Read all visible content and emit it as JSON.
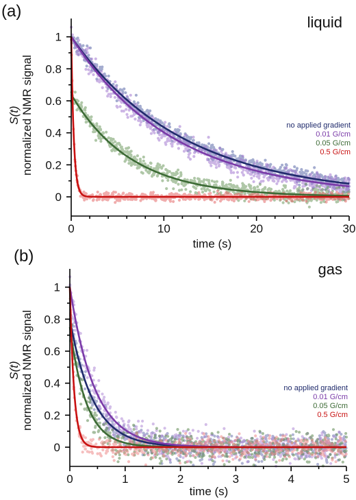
{
  "chart_data": [
    {
      "panel_label": "(a)",
      "title": "liquid",
      "type": "scatter",
      "xlabel": "time (s)",
      "ylabel_top": "S(t)",
      "ylabel": "normalized NMR signal",
      "xlim": [
        0,
        30
      ],
      "ylim": [
        -0.12,
        1.08
      ],
      "xticks": [
        0,
        10,
        20,
        30
      ],
      "yticks": [
        0,
        0.2,
        0.4,
        0.6,
        0.8,
        1
      ],
      "legend_placement": "right",
      "grid": false,
      "series": [
        {
          "name": "no applied gradient",
          "color": "#1f2a6b",
          "dot_color": "#5a6aa8",
          "amplitude": 1.0,
          "tau": 12.0,
          "points": 700,
          "noise": 0.025
        },
        {
          "name": "0.01 G/cm",
          "color": "#7a3aa8",
          "dot_color": "#a47ad0",
          "amplitude": 1.0,
          "tau": 11.0,
          "points": 700,
          "noise": 0.03
        },
        {
          "name": "0.05 G/cm",
          "color": "#3c6a35",
          "dot_color": "#6e9a60",
          "amplitude": 0.64,
          "tau": 6.5,
          "points": 700,
          "noise": 0.025
        },
        {
          "name": "0.5 G/cm",
          "color": "#c81010",
          "dot_color": "#e56a6a",
          "amplitude": 1.0,
          "tau": 0.28,
          "points": 700,
          "noise": 0.012
        }
      ]
    },
    {
      "panel_label": "(b)",
      "title": "gas",
      "type": "scatter",
      "xlabel": "time (s)",
      "ylabel_top": "S(t)",
      "ylabel": "normalized NMR signal",
      "xlim": [
        0,
        5
      ],
      "ylim": [
        -0.12,
        1.08
      ],
      "xticks": [
        0,
        1,
        2,
        3,
        4,
        5
      ],
      "yticks": [
        0,
        0.2,
        0.4,
        0.6,
        0.8,
        1
      ],
      "legend_placement": "right",
      "grid": false,
      "series": [
        {
          "name": "no applied gradient",
          "color": "#1f2a6b",
          "dot_color": "#6f78b0",
          "amplitude": 0.8,
          "tau": 0.42,
          "points": 550,
          "noise": 0.045
        },
        {
          "name": "0.01 G/cm",
          "color": "#7a3aa8",
          "dot_color": "#b08ad6",
          "amplitude": 1.0,
          "tau": 0.45,
          "points": 550,
          "noise": 0.045
        },
        {
          "name": "0.05 G/cm",
          "color": "#3c6a35",
          "dot_color": "#5f8a52",
          "amplitude": 0.75,
          "tau": 0.3,
          "points": 550,
          "noise": 0.045
        },
        {
          "name": "0.5 G/cm",
          "color": "#c81010",
          "dot_color": "#ee8a8a",
          "amplitude": 1.0,
          "tau": 0.075,
          "points": 550,
          "noise": 0.035
        }
      ]
    }
  ]
}
